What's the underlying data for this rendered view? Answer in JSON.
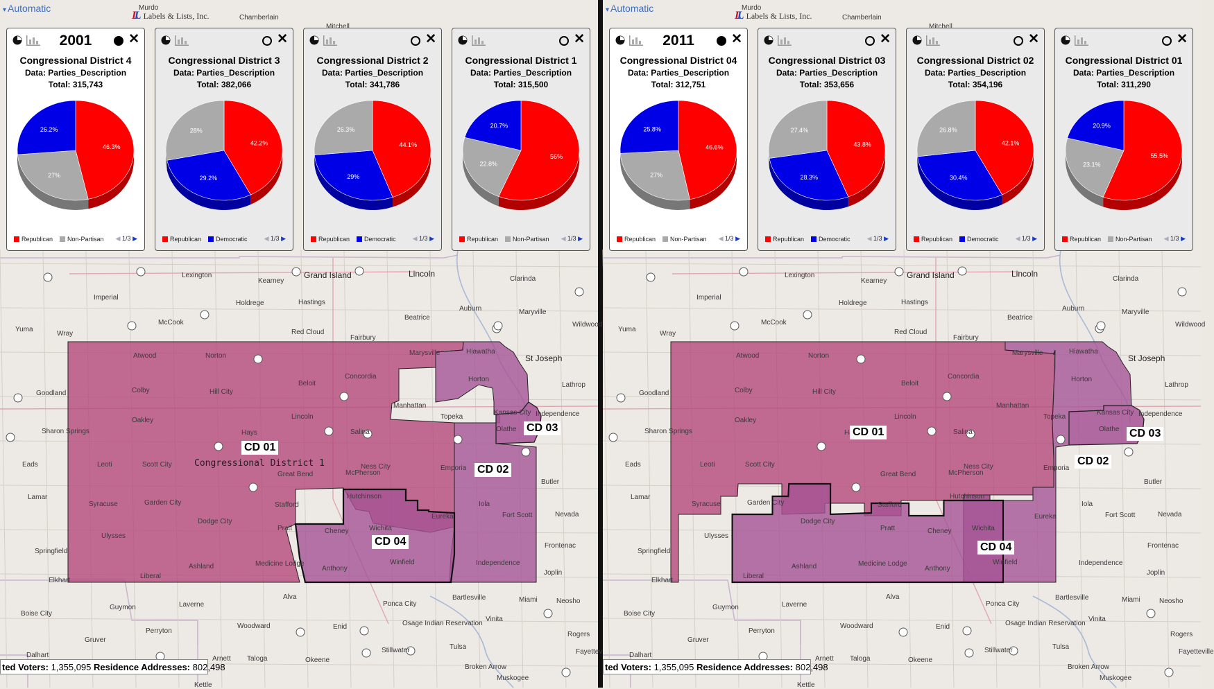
{
  "logo": {
    "text": "Labels & Lists, Inc."
  },
  "map_mode": "Automatic",
  "colors": {
    "republican": "#ff0000",
    "democratic": "#0000e6",
    "nonpartisan": "#aaaaaa",
    "district_fill": "#b8457a"
  },
  "panels": [
    {
      "year": "2001",
      "status": {
        "label1": "ted Voters:",
        "value1": "1,355,095",
        "label2": "Residence Addresses:",
        "value2": "802,498"
      },
      "district_labels": [
        "CD 01",
        "CD 02",
        "CD 03",
        "CD 04"
      ],
      "overlay_label": "Congressional District 1",
      "cards": [
        {
          "title": "Congressional District 4",
          "data": "Data: Parties_Description",
          "total": "Total: 315,743",
          "slices": [
            {
              "party": "Republican",
              "pct": 46.3,
              "label": "46.3%"
            },
            {
              "party": "Non-Partisan",
              "pct": 27.0,
              "label": "27%"
            },
            {
              "party": "Democratic",
              "pct": 26.2,
              "label": "26.2%"
            }
          ],
          "legend": [
            "Republican",
            "Non-Partisan"
          ],
          "pager": "1/3"
        },
        {
          "title": "Congressional District 3",
          "data": "Data: Parties_Description",
          "total": "Total: 382,066",
          "slices": [
            {
              "party": "Republican",
              "pct": 42.2,
              "label": "42.2%"
            },
            {
              "party": "Democratic",
              "pct": 29.2,
              "label": "29.2%"
            },
            {
              "party": "Non-Partisan",
              "pct": 28.0,
              "label": "28%"
            }
          ],
          "legend": [
            "Republican",
            "Democratic"
          ],
          "pager": "1/3"
        },
        {
          "title": "Congressional District 2",
          "data": "Data: Parties_Description",
          "total": "Total: 341,786",
          "slices": [
            {
              "party": "Republican",
              "pct": 44.1,
              "label": "44.1%"
            },
            {
              "party": "Democratic",
              "pct": 29.0,
              "label": "29%"
            },
            {
              "party": "Non-Partisan",
              "pct": 26.3,
              "label": "26.3%"
            }
          ],
          "legend": [
            "Republican",
            "Democratic"
          ],
          "pager": "1/3"
        },
        {
          "title": "Congressional District 1",
          "data": "Data: Parties_Description",
          "total": "Total: 315,500",
          "slices": [
            {
              "party": "Republican",
              "pct": 56.0,
              "label": "56%"
            },
            {
              "party": "Non-Partisan",
              "pct": 22.8,
              "label": "22.8%"
            },
            {
              "party": "Democratic",
              "pct": 20.7,
              "label": "20.7%"
            }
          ],
          "legend": [
            "Republican",
            "Non-Partisan"
          ],
          "pager": "1/3"
        }
      ]
    },
    {
      "year": "2011",
      "status": {
        "label1": "ted Voters:",
        "value1": "1,355,095",
        "label2": "Residence Addresses:",
        "value2": "802,498"
      },
      "district_labels": [
        "CD 01",
        "CD 02",
        "CD 03",
        "CD 04"
      ],
      "overlay_label": "",
      "cards": [
        {
          "title": "Congressional District 04",
          "data": "Data: Parties_Description",
          "total": "Total: 312,751",
          "slices": [
            {
              "party": "Republican",
              "pct": 46.6,
              "label": "46.6%"
            },
            {
              "party": "Non-Partisan",
              "pct": 27.0,
              "label": "27%"
            },
            {
              "party": "Democratic",
              "pct": 25.8,
              "label": "25.8%"
            }
          ],
          "legend": [
            "Republican",
            "Non-Partisan"
          ],
          "pager": "1/3"
        },
        {
          "title": "Congressional District 03",
          "data": "Data: Parties_Description",
          "total": "Total: 353,656",
          "slices": [
            {
              "party": "Republican",
              "pct": 43.8,
              "label": "43.8%"
            },
            {
              "party": "Democratic",
              "pct": 28.3,
              "label": "28.3%"
            },
            {
              "party": "Non-Partisan",
              "pct": 27.4,
              "label": "27.4%"
            }
          ],
          "legend": [
            "Republican",
            "Democratic"
          ],
          "pager": "1/3"
        },
        {
          "title": "Congressional District 02",
          "data": "Data: Parties_Description",
          "total": "Total: 354,196",
          "slices": [
            {
              "party": "Republican",
              "pct": 42.1,
              "label": "42.1%"
            },
            {
              "party": "Democratic",
              "pct": 30.4,
              "label": "30.4%"
            },
            {
              "party": "Non-Partisan",
              "pct": 26.8,
              "label": "26.8%"
            }
          ],
          "legend": [
            "Republican",
            "Democratic"
          ],
          "pager": "1/3"
        },
        {
          "title": "Congressional District 01",
          "data": "Data: Parties_Description",
          "total": "Total: 311,290",
          "slices": [
            {
              "party": "Republican",
              "pct": 55.5,
              "label": "55.5%"
            },
            {
              "party": "Non-Partisan",
              "pct": 23.1,
              "label": "23.1%"
            },
            {
              "party": "Democratic",
              "pct": 20.9,
              "label": "20.9%"
            }
          ],
          "legend": [
            "Republican",
            "Non-Partisan"
          ],
          "pager": "1/3"
        }
      ]
    }
  ],
  "places": [
    "Murdo",
    "Chamberlain",
    "Mitchell",
    "Lexington",
    "Kearney",
    "Grand Island",
    "Lincoln",
    "Clarinda",
    "Imperial",
    "Holdrege",
    "Hastings",
    "McCook",
    "Beatrice",
    "Auburn",
    "Maryville",
    "Yuma",
    "Wray",
    "Red Cloud",
    "Fairbury",
    "St Joseph",
    "Atwood",
    "Norton",
    "Marysville",
    "Hiawatha",
    "Horton",
    "Goodland",
    "Colby",
    "Hill City",
    "Beloit",
    "Concordia",
    "Manhattan",
    "Topeka",
    "Kansas City",
    "Independence",
    "Oakley",
    "Lincoln",
    "Salina",
    "Olathe",
    "Sharon Springs",
    "Hays",
    "Eads",
    "Leoti",
    "Scott City",
    "Emporia",
    "McPherson",
    "Great Bend",
    "Lamar",
    "Syracuse",
    "Garden City",
    "Stafford",
    "Hutchinson",
    "Iola",
    "Fort Scott",
    "Nevada",
    "Ulysses",
    "Dodge City",
    "Pratt",
    "Cheney",
    "Wichita",
    "Eureka",
    "Springfield",
    "Ashland",
    "Medicine Lodge",
    "Anthony",
    "Winfield",
    "Independence",
    "Joplin",
    "Elkhart",
    "Liberal",
    "Alva",
    "Bartlesville",
    "Miami",
    "Neosho",
    "Boise City",
    "Guymon",
    "Laverne",
    "Ponca City",
    "Woodward",
    "Enid",
    "Perryton",
    "Gruver",
    "Dalhart",
    "Arnett",
    "Taloga",
    "Okeene",
    "Stillwater",
    "Tulsa",
    "Rogers",
    "Broken Arrow",
    "Muskogee",
    "Kettle",
    "Lathrop",
    "Butler",
    "Frontenac",
    "Vinita",
    "Fayetteville",
    "Osage Indian Reservation",
    "Wildwood",
    "Ness City"
  ]
}
